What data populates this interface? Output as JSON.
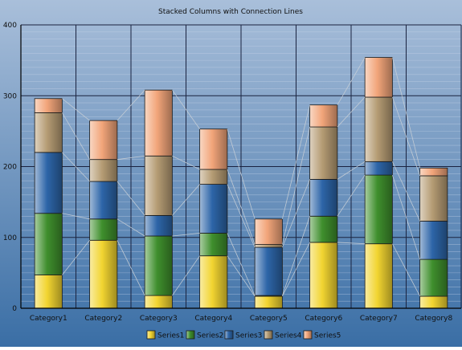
{
  "chart_data": {
    "type": "bar",
    "stacked": true,
    "title": "Stacked Columns with Connection Lines",
    "xlabel": "",
    "ylabel": "",
    "ylim": [
      0,
      400
    ],
    "yticks": [
      0,
      100,
      200,
      300,
      400
    ],
    "grid": true,
    "legend_position": "bottom",
    "categories": [
      "Category1",
      "Category2",
      "Category3",
      "Category4",
      "Category5",
      "Category6",
      "Category7",
      "Category8"
    ],
    "series": [
      {
        "name": "Series1",
        "color": "#f2d531",
        "values": [
          47,
          96,
          18,
          74,
          17,
          93,
          91,
          17
        ]
      },
      {
        "name": "Series2",
        "color": "#3f8f2d",
        "values": [
          87,
          30,
          84,
          32,
          1,
          37,
          97,
          52
        ]
      },
      {
        "name": "Series3",
        "color": "#2d65a8",
        "values": [
          86,
          53,
          29,
          69,
          68,
          52,
          19,
          54
        ]
      },
      {
        "name": "Series4",
        "color": "#b59c74",
        "values": [
          56,
          31,
          84,
          21,
          4,
          74,
          91,
          64
        ]
      },
      {
        "name": "Series5",
        "color": "#f2a57a",
        "values": [
          20,
          55,
          93,
          57,
          36,
          31,
          56,
          11
        ]
      }
    ],
    "colors": {
      "background_top": "#a9bfda",
      "background_bottom": "#3a6ea5",
      "grid_major": "#1a2340",
      "grid_minor": "#c8d6ea",
      "connection_line": "#c9cfd6"
    }
  }
}
